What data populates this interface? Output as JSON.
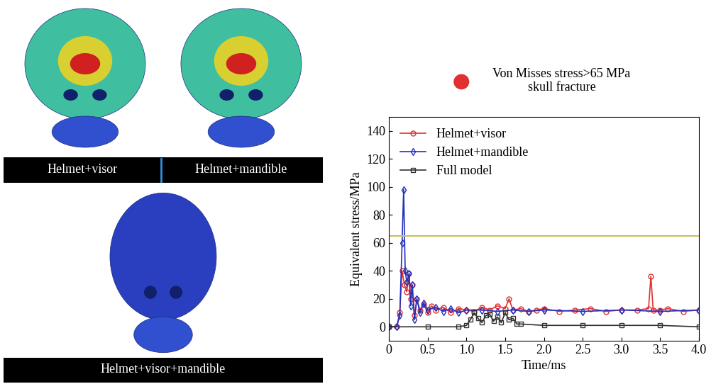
{
  "panels": [
    {
      "caption": "Helmet+visor",
      "color": "#3fbfa0"
    },
    {
      "caption": "Helmet+mandible",
      "color": "#3fbfa0"
    },
    {
      "caption": "Helmet+visor+mandible",
      "color": "#2a3fbf"
    }
  ],
  "chart_data": {
    "type": "line",
    "xlabel": "Time/ms",
    "ylabel": "Equivalent stress/MPa",
    "xlim": [
      0,
      4.0
    ],
    "ylim": [
      -10,
      150
    ],
    "xticks": [
      0,
      0.5,
      {
        "value": 1,
        "label": "1.0"
      },
      1.5,
      {
        "value": 2,
        "label": "2.0"
      },
      2.5,
      {
        "value": 3,
        "label": "3.0"
      },
      3.5,
      {
        "value": 4,
        "label": "4.0"
      }
    ],
    "yticks": [
      0,
      20,
      40,
      60,
      80,
      100,
      120,
      140
    ],
    "legend": "upper left",
    "threshold": {
      "value": 65,
      "color": "#c8c060"
    },
    "annotation": {
      "text": "Von Misses stress>65 MPa\nskull fracture",
      "color": "#e03030"
    },
    "series": [
      {
        "name": "Helmet+visor",
        "color": "#e03030",
        "marker": "o",
        "x": [
          0,
          0.1,
          0.14,
          0.17,
          0.2,
          0.23,
          0.26,
          0.28,
          0.3,
          0.33,
          0.36,
          0.4,
          0.45,
          0.5,
          0.55,
          0.6,
          0.7,
          0.8,
          0.9,
          1.0,
          1.1,
          1.2,
          1.3,
          1.4,
          1.5,
          1.55,
          1.6,
          1.7,
          1.8,
          1.9,
          2.0,
          2.2,
          2.4,
          2.6,
          2.8,
          3.0,
          3.2,
          3.35,
          3.38,
          3.41,
          3.5,
          3.6,
          3.8,
          4.0
        ],
        "values": [
          0,
          0,
          10,
          40,
          30,
          25,
          38,
          20,
          30,
          8,
          20,
          12,
          16,
          10,
          15,
          12,
          14,
          10,
          13,
          12,
          11,
          14,
          12,
          15,
          13,
          20,
          12,
          13,
          11,
          12,
          13,
          11,
          12,
          13,
          11,
          12,
          12,
          13,
          36,
          12,
          12,
          13,
          11,
          12
        ]
      },
      {
        "name": "Helmet+mandible",
        "color": "#2030c0",
        "marker": "d",
        "x": [
          0,
          0.1,
          0.14,
          0.17,
          0.19,
          0.21,
          0.23,
          0.26,
          0.28,
          0.3,
          0.33,
          0.36,
          0.4,
          0.45,
          0.5,
          0.6,
          0.7,
          0.8,
          0.9,
          1.0,
          1.2,
          1.4,
          1.6,
          1.8,
          2.0,
          2.5,
          3.0,
          3.5,
          4.0
        ],
        "values": [
          0,
          0,
          8,
          60,
          98,
          40,
          32,
          38,
          15,
          30,
          5,
          20,
          10,
          17,
          12,
          14,
          11,
          13,
          10,
          12,
          12,
          11,
          12,
          11,
          12,
          11,
          12,
          11,
          12
        ]
      },
      {
        "name": "Full model",
        "color": "#303030",
        "marker": "s",
        "x": [
          0,
          0.5,
          0.9,
          1.0,
          1.05,
          1.1,
          1.15,
          1.2,
          1.25,
          1.3,
          1.35,
          1.4,
          1.45,
          1.5,
          1.55,
          1.6,
          1.65,
          1.7,
          2.0,
          2.5,
          3.0,
          3.5,
          4.0
        ],
        "values": [
          0,
          0,
          0,
          1,
          5,
          10,
          6,
          3,
          8,
          9,
          4,
          7,
          3,
          10,
          5,
          6,
          2,
          2,
          1,
          1,
          1,
          1,
          0
        ]
      }
    ]
  }
}
